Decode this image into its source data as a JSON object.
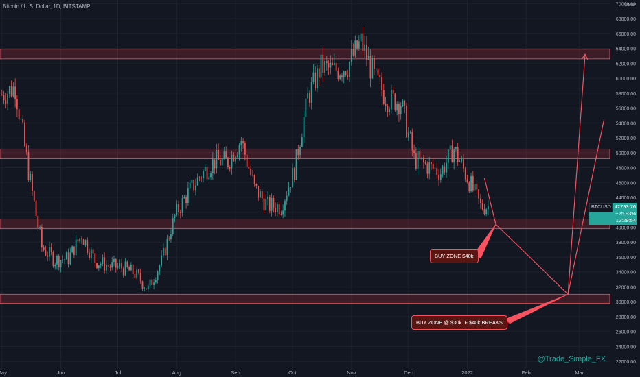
{
  "header": {
    "title": "Bitcoin / U.S. Dollar, 1D, BITSTAMP",
    "currency": "USD"
  },
  "watermark": "@Trade_Simple_FX",
  "price_box": {
    "symbol": "BTCUSD",
    "price": "42793.76",
    "change": "−25.93%",
    "countdown": "12:29:54"
  },
  "annotations": {
    "buy_zone_40k": "BUY ZONE $40k",
    "buy_zone_30k": "BUY ZONE @ $30k IF $40k BREAKS"
  },
  "colors": {
    "background": "#131722",
    "up_candle": "#26a69a",
    "down_candle": "#ef5350",
    "zone_border": "#f7525f",
    "zone_fill": "rgba(242,54,69,0.18)",
    "grid": "#1e222d",
    "axis_text": "#b2b5be"
  },
  "chart_data": {
    "type": "candlestick",
    "title": "Bitcoin / U.S. Dollar, 1D, BITSTAMP",
    "y_axis": {
      "min": 21000,
      "max": 70500,
      "ticks": [
        22000,
        24000,
        26000,
        28000,
        30000,
        32000,
        34000,
        36000,
        38000,
        40000,
        42000,
        44000,
        46000,
        48000,
        50000,
        52000,
        54000,
        56000,
        58000,
        60000,
        62000,
        64000,
        66000,
        68000,
        70000
      ],
      "tick_labels": [
        "22000.00",
        "24000.00",
        "26000.00",
        "28000.00",
        "30000.00",
        "32000.00",
        "34000.00",
        "36000.00",
        "38000.00",
        "40000.00",
        "42000.00",
        "44000.00",
        "46000.00",
        "48000.00",
        "50000.00",
        "52000.00",
        "54000.00",
        "56000.00",
        "58000.00",
        "60000.00",
        "62000.00",
        "64000.00",
        "66000.00",
        "68000.00",
        "70000.00"
      ]
    },
    "x_axis": {
      "ticks": [
        {
          "label": "May",
          "date": "2021-05-01"
        },
        {
          "label": "Jun",
          "date": "2021-06-01"
        },
        {
          "label": "Jul",
          "date": "2021-07-01"
        },
        {
          "label": "Aug",
          "date": "2021-08-01"
        },
        {
          "label": "Sep",
          "date": "2021-09-01"
        },
        {
          "label": "Oct",
          "date": "2021-10-01"
        },
        {
          "label": "Nov",
          "date": "2021-11-01"
        },
        {
          "label": "Dec",
          "date": "2021-12-01"
        },
        {
          "label": "2022",
          "date": "2022-01-01"
        },
        {
          "label": "Feb",
          "date": "2022-02-01"
        },
        {
          "label": "Mar",
          "date": "2022-03-01"
        }
      ]
    },
    "last_price": 42793.76,
    "resistance_zones": [
      {
        "low": 62600,
        "high": 63900
      },
      {
        "low": 49200,
        "high": 50500
      },
      {
        "low": 39800,
        "high": 41100
      },
      {
        "low": 29800,
        "high": 31000
      }
    ],
    "projection_path": [
      {
        "date": "2022-01-10",
        "price": 46600
      },
      {
        "date": "2022-01-16",
        "price": 40400
      },
      {
        "date": "2022-02-23",
        "price": 31000
      },
      {
        "date": "2022-02-23",
        "price": 31000
      },
      {
        "date": "2022-03-04",
        "price": 63200
      }
    ],
    "secondary_projection": [
      {
        "date": "2022-02-23",
        "price": 31000
      },
      {
        "date": "2022-03-14",
        "price": 54500
      }
    ],
    "candles_close_weekly": [
      {
        "date": "2021-05-01",
        "close": 57800
      },
      {
        "date": "2021-05-08",
        "close": 58800
      },
      {
        "date": "2021-05-15",
        "close": 47500
      },
      {
        "date": "2021-05-22",
        "close": 37300
      },
      {
        "date": "2021-05-29",
        "close": 35600
      },
      {
        "date": "2021-06-05",
        "close": 35800
      },
      {
        "date": "2021-06-12",
        "close": 39000
      },
      {
        "date": "2021-06-19",
        "close": 35500
      },
      {
        "date": "2021-06-26",
        "close": 34800
      },
      {
        "date": "2021-07-03",
        "close": 34600
      },
      {
        "date": "2021-07-10",
        "close": 33800
      },
      {
        "date": "2021-07-17",
        "close": 31700
      },
      {
        "date": "2021-07-24",
        "close": 35400
      },
      {
        "date": "2021-07-31",
        "close": 41500
      },
      {
        "date": "2021-08-07",
        "close": 44600
      },
      {
        "date": "2021-08-14",
        "close": 47100
      },
      {
        "date": "2021-08-21",
        "close": 48900
      },
      {
        "date": "2021-08-28",
        "close": 48800
      },
      {
        "date": "2021-09-04",
        "close": 51700
      },
      {
        "date": "2021-09-11",
        "close": 45200
      },
      {
        "date": "2021-09-18",
        "close": 42900
      },
      {
        "date": "2021-09-25",
        "close": 42800
      },
      {
        "date": "2021-10-02",
        "close": 47700
      },
      {
        "date": "2021-10-09",
        "close": 57400
      },
      {
        "date": "2021-10-16",
        "close": 61500
      },
      {
        "date": "2021-10-23",
        "close": 61000
      },
      {
        "date": "2021-10-30",
        "close": 61700
      },
      {
        "date": "2021-11-06",
        "close": 64900
      },
      {
        "date": "2021-11-13",
        "close": 60200
      },
      {
        "date": "2021-11-20",
        "close": 57200
      },
      {
        "date": "2021-11-27",
        "close": 56800
      },
      {
        "date": "2021-12-04",
        "close": 49200
      },
      {
        "date": "2021-12-11",
        "close": 48200
      },
      {
        "date": "2021-12-18",
        "close": 47400
      },
      {
        "date": "2021-12-25",
        "close": 50500
      },
      {
        "date": "2022-01-01",
        "close": 46700
      },
      {
        "date": "2022-01-08",
        "close": 42800
      }
    ]
  }
}
